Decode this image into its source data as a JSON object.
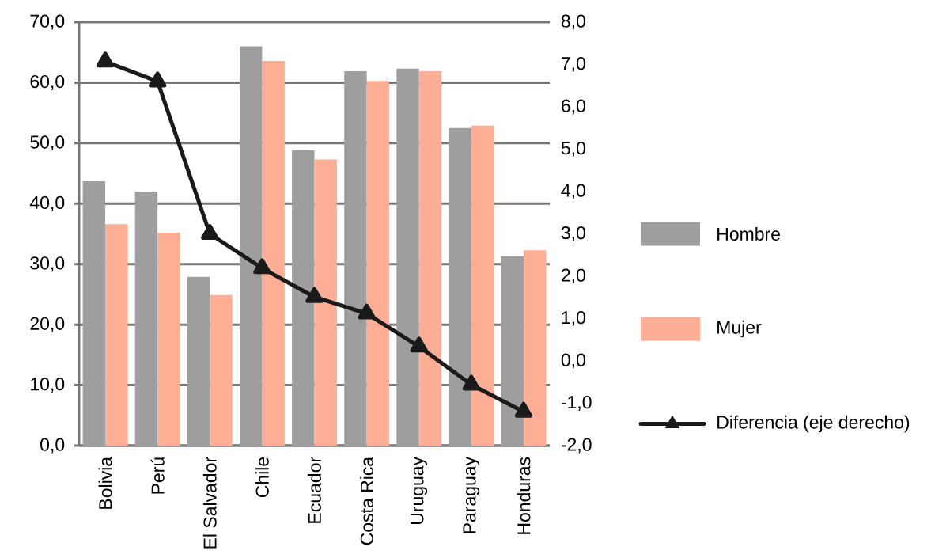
{
  "chart_data": {
    "type": "bar",
    "categories": [
      "Bolivia",
      "Perú",
      "El Salvador",
      "Chile",
      "Ecuador",
      "Costa Rica",
      "Uruguay",
      "Paraguay",
      "Honduras"
    ],
    "series": [
      {
        "name": "Hombre",
        "color": "#9e9e9e",
        "values": [
          43.7,
          42.0,
          27.9,
          66.0,
          48.8,
          61.9,
          62.3,
          52.5,
          31.3
        ]
      },
      {
        "name": "Mujer",
        "color": "#ffae96",
        "values": [
          36.6,
          35.2,
          24.9,
          63.6,
          47.3,
          60.3,
          61.9,
          52.9,
          32.3
        ]
      },
      {
        "name": "Diferencia (eje derecho)",
        "type": "line",
        "axis": "y2",
        "color": "#1a1a1a",
        "marker": "triangle",
        "values": [
          7.07,
          6.6,
          3.0,
          2.19,
          1.51,
          1.12,
          0.34,
          -0.56,
          -1.2
        ]
      }
    ],
    "ylim": [
      0,
      70
    ],
    "yticks": [
      {
        "value": 0,
        "label": "0,0"
      },
      {
        "value": 10,
        "label": "10,0"
      },
      {
        "value": 20,
        "label": "20,0"
      },
      {
        "value": 30,
        "label": "30,0"
      },
      {
        "value": 40,
        "label": "40,0"
      },
      {
        "value": 50,
        "label": "50,0"
      },
      {
        "value": 60,
        "label": "60,0"
      },
      {
        "value": 70,
        "label": "70,0"
      }
    ],
    "y2lim": [
      -2,
      8
    ],
    "y2ticks": [
      {
        "value": -2,
        "label": "-2,0"
      },
      {
        "value": -1,
        "label": "-1,0"
      },
      {
        "value": 0,
        "label": "0,0"
      },
      {
        "value": 1,
        "label": "1,0"
      },
      {
        "value": 2,
        "label": "2,0"
      },
      {
        "value": 3,
        "label": "3,0"
      },
      {
        "value": 4,
        "label": "4,0"
      },
      {
        "value": 5,
        "label": "5,0"
      },
      {
        "value": 6,
        "label": "6,0"
      },
      {
        "value": 7,
        "label": "7,0"
      },
      {
        "value": 8,
        "label": "8,0"
      }
    ],
    "grid": "y",
    "legend": "right"
  }
}
